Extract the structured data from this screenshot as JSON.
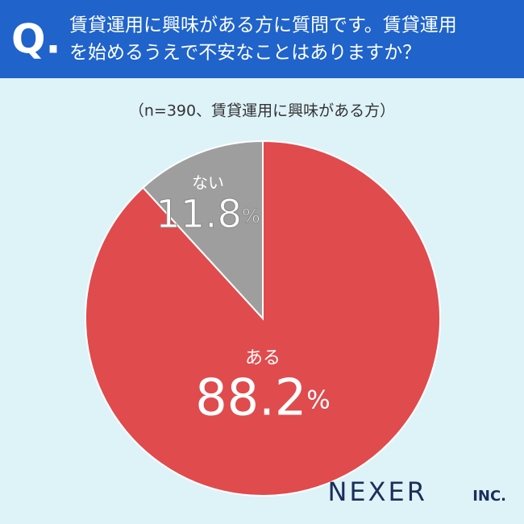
{
  "question_mark": "Q.",
  "brand": "NEXER",
  "brand_suffix": "INC.",
  "chart_data": {
    "type": "pie",
    "title": [
      "賃貸運用に興味がある方に質問です。賃貸運用",
      "を始めるうえで不安なことはありますか？"
    ],
    "subtitle": "（n=390、賃貸運用に興味がある方）",
    "categories": [
      "ある",
      "ない"
    ],
    "values": [
      88.2,
      11.8
    ],
    "unit": "%",
    "colors": [
      "#e04b4d",
      "#9e9e9e"
    ]
  }
}
